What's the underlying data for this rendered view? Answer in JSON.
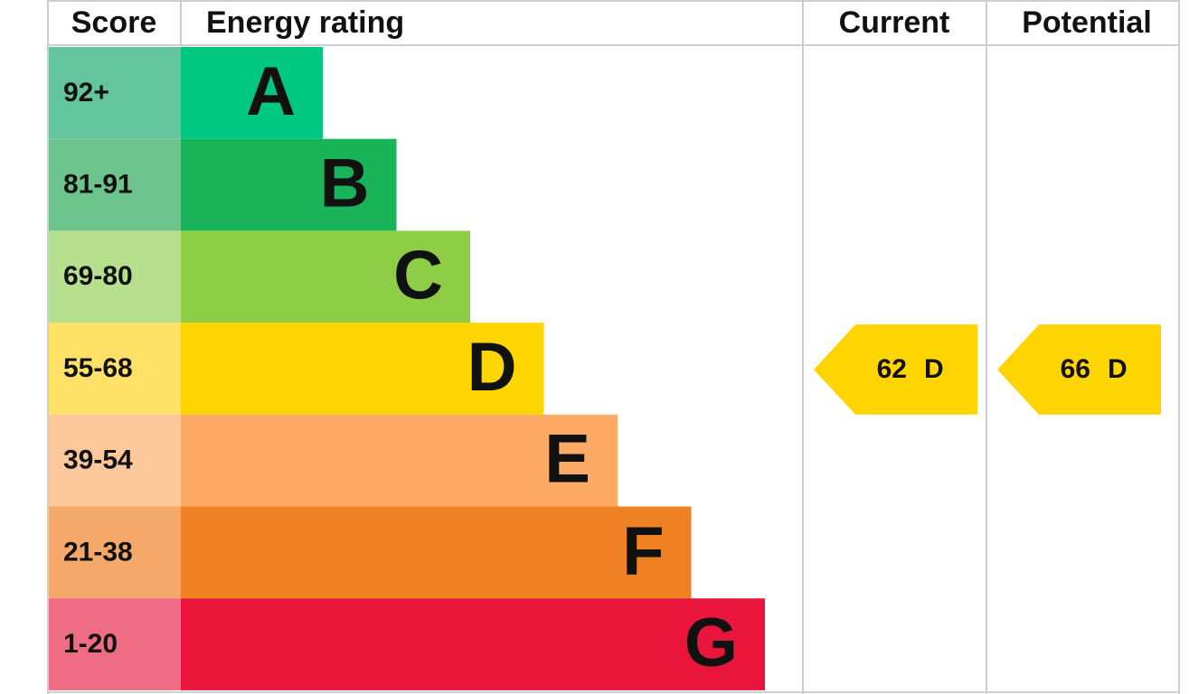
{
  "header": {
    "score": "Score",
    "rating": "Energy rating",
    "current": "Current",
    "potential": "Potential"
  },
  "bands": [
    {
      "range": "92+",
      "letter": "A",
      "color": "#00c781",
      "range_color": "#64c49e"
    },
    {
      "range": "81-91",
      "letter": "B",
      "color": "#19b459",
      "range_color": "#6cc38b"
    },
    {
      "range": "69-80",
      "letter": "C",
      "color": "#8dce46",
      "range_color": "#b6df8e"
    },
    {
      "range": "55-68",
      "letter": "D",
      "color": "#ffd500",
      "range_color": "#ffe168"
    },
    {
      "range": "39-54",
      "letter": "E",
      "color": "#fcaa65",
      "range_color": "#fdc79c"
    },
    {
      "range": "21-38",
      "letter": "F",
      "color": "#ef8023",
      "range_color": "#f4a96a"
    },
    {
      "range": "1-20",
      "letter": "G",
      "color": "#e9153b",
      "range_color": "#ee6c84"
    }
  ],
  "current": {
    "score": 62,
    "rating": "D"
  },
  "potential": {
    "score": 66,
    "rating": "D"
  }
}
